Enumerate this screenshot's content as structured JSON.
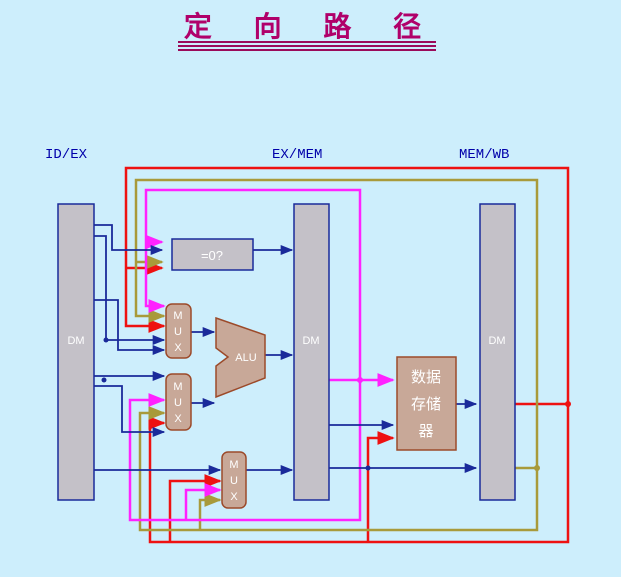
{
  "title": "定 向 路 径",
  "stage_labels": {
    "id_ex": "ID/EX",
    "ex_mem": "EX/MEM",
    "mem_wb": "MEM/WB"
  },
  "blocks": {
    "id_ex_reg": "DM",
    "ex_mem_reg": "DM",
    "mem_wb_reg": "DM",
    "zero_test": "=0?",
    "alu": "ALU",
    "mux_chars": [
      "M",
      "U",
      "X"
    ],
    "data_memory_lines": [
      "数据",
      "存储",
      "器"
    ]
  },
  "colors": {
    "background": "#cdeefc",
    "title": "#b0006a",
    "register_fill": "#c4c1c8",
    "register_stroke": "#1a2a9a",
    "unit_fill": "#c8a898",
    "unit_stroke": "#9c4a2a",
    "wire_blue": "#1a2a9a",
    "wire_red": "#ee1111",
    "wire_magenta": "#ff22ff",
    "wire_olive": "#a89a3a"
  }
}
